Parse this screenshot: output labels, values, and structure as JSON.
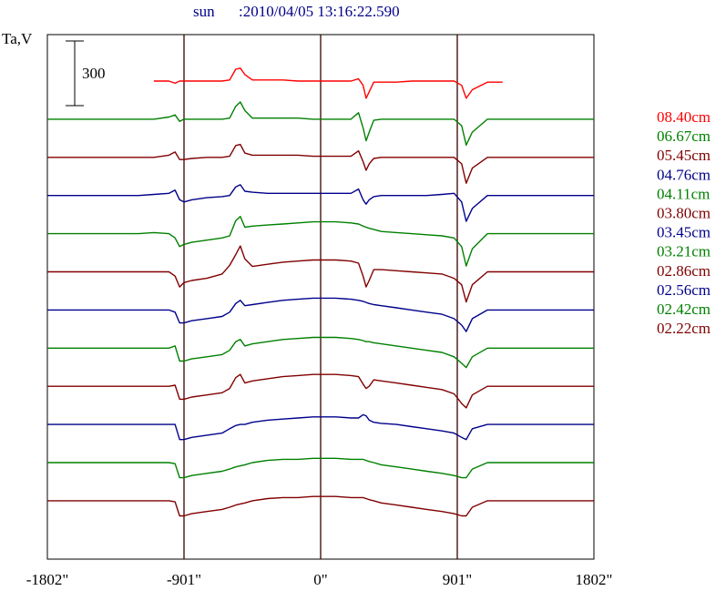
{
  "header": {
    "object_label": "sun",
    "timestamp": ":2010/04/05 13:16:22.590"
  },
  "colors": {
    "red": "#ff0000",
    "green": "#008000",
    "maroon": "#800000",
    "navy": "#00008b",
    "header_text": "#00008b"
  },
  "chart_data": {
    "type": "line",
    "title": "sun    :2010/04/05 13:16:22.590",
    "ylabel": "Ta,V",
    "scale_bar": {
      "label": "300",
      "value": 300
    },
    "x_ticks": [
      {
        "label": "-1802\"",
        "value": -1802
      },
      {
        "label": "-901\"",
        "value": -901
      },
      {
        "label": "0\"",
        "value": 0
      },
      {
        "label": "901\"",
        "value": 901
      },
      {
        "label": "1802\"",
        "value": 1802
      }
    ],
    "xlim": [
      -1802,
      1802
    ],
    "vertical_lines": [
      -901,
      0,
      901
    ],
    "x": [
      -1802,
      -1650,
      -1500,
      -1350,
      -1200,
      -1100,
      -1000,
      -960,
      -930,
      -901,
      -850,
      -750,
      -650,
      -600,
      -560,
      -530,
      -500,
      -450,
      -350,
      -250,
      -150,
      -50,
      0,
      100,
      200,
      250,
      280,
      300,
      320,
      350,
      400,
      500,
      600,
      700,
      800,
      880,
      930,
      960,
      1000,
      1100,
      1200,
      1300,
      1400,
      1500,
      1600,
      1700,
      1802
    ],
    "series": [
      {
        "name": "08.40cm",
        "color": "#ff0000",
        "values": [
          null,
          null,
          null,
          null,
          null,
          0,
          0,
          -10,
          0,
          0,
          0,
          0,
          0,
          5,
          55,
          60,
          30,
          5,
          5,
          5,
          0,
          0,
          0,
          0,
          0,
          10,
          -20,
          -80,
          -50,
          -5,
          -5,
          -5,
          0,
          0,
          0,
          0,
          -20,
          -80,
          -40,
          -5,
          -5,
          null,
          null,
          null,
          null,
          null,
          null
        ]
      },
      {
        "name": "06.67cm",
        "color": "#008000",
        "values": [
          0,
          0,
          0,
          0,
          0,
          0,
          10,
          20,
          -10,
          0,
          0,
          0,
          0,
          5,
          60,
          80,
          40,
          5,
          5,
          5,
          5,
          0,
          0,
          0,
          0,
          30,
          -40,
          -100,
          -60,
          -5,
          0,
          0,
          0,
          0,
          0,
          0,
          -30,
          -120,
          -60,
          0,
          0,
          0,
          0,
          0,
          0,
          0,
          0
        ]
      },
      {
        "name": "05.45cm",
        "color": "#800000",
        "values": [
          0,
          0,
          0,
          0,
          0,
          0,
          10,
          25,
          -10,
          -10,
          -5,
          0,
          0,
          5,
          55,
          60,
          20,
          10,
          10,
          10,
          10,
          5,
          5,
          5,
          5,
          30,
          -20,
          -60,
          -30,
          -5,
          0,
          0,
          0,
          0,
          0,
          0,
          -30,
          -120,
          -50,
          0,
          0,
          0,
          0,
          0,
          0,
          0,
          0
        ]
      },
      {
        "name": "04.76cm",
        "color": "#00008b",
        "values": [
          0,
          0,
          0,
          0,
          0,
          5,
          10,
          25,
          -20,
          -30,
          -20,
          -10,
          -5,
          0,
          40,
          50,
          20,
          15,
          10,
          10,
          10,
          10,
          10,
          10,
          10,
          30,
          -20,
          -40,
          -20,
          -5,
          0,
          0,
          0,
          0,
          5,
          10,
          -30,
          -120,
          -60,
          0,
          0,
          0,
          0,
          0,
          0,
          0,
          0
        ]
      },
      {
        "name": "04.11cm",
        "color": "#008000",
        "values": [
          0,
          0,
          0,
          0,
          0,
          5,
          0,
          -20,
          -60,
          -50,
          -40,
          -30,
          -20,
          -10,
          60,
          80,
          30,
          35,
          40,
          45,
          50,
          55,
          55,
          55,
          50,
          45,
          35,
          30,
          25,
          20,
          10,
          5,
          0,
          -5,
          -10,
          -20,
          -60,
          -150,
          -70,
          0,
          0,
          0,
          0,
          0,
          0,
          0,
          0
        ]
      },
      {
        "name": "03.80cm",
        "color": "#800000",
        "values": [
          0,
          0,
          0,
          0,
          0,
          0,
          0,
          -20,
          -70,
          -50,
          -40,
          -30,
          -10,
          30,
          80,
          120,
          60,
          25,
          35,
          45,
          50,
          55,
          55,
          55,
          50,
          40,
          -20,
          -70,
          -40,
          10,
          10,
          5,
          0,
          -5,
          -10,
          -30,
          -60,
          -140,
          -60,
          0,
          0,
          0,
          0,
          0,
          0,
          0,
          0
        ]
      },
      {
        "name": "03.45cm",
        "color": "#00008b",
        "values": [
          0,
          0,
          0,
          0,
          0,
          0,
          0,
          -10,
          -60,
          -60,
          -50,
          -40,
          -30,
          -10,
          30,
          45,
          20,
          25,
          35,
          45,
          50,
          55,
          55,
          55,
          50,
          45,
          40,
          35,
          30,
          25,
          20,
          10,
          0,
          -10,
          -20,
          -40,
          -70,
          -100,
          -40,
          0,
          0,
          0,
          0,
          0,
          0,
          0,
          0
        ]
      },
      {
        "name": "03.21cm",
        "color": "#008000",
        "values": [
          0,
          0,
          0,
          0,
          0,
          0,
          0,
          10,
          -60,
          -60,
          -50,
          -40,
          -30,
          -10,
          30,
          40,
          10,
          20,
          30,
          40,
          45,
          50,
          50,
          50,
          45,
          40,
          35,
          30,
          30,
          25,
          20,
          10,
          0,
          -10,
          -20,
          -40,
          -70,
          -90,
          -40,
          0,
          0,
          0,
          0,
          0,
          0,
          0,
          0
        ]
      },
      {
        "name": "02.86cm",
        "color": "#800000",
        "values": [
          0,
          0,
          0,
          0,
          0,
          0,
          0,
          5,
          -60,
          -60,
          -50,
          -40,
          -30,
          -10,
          40,
          55,
          15,
          25,
          35,
          45,
          50,
          55,
          55,
          55,
          50,
          45,
          10,
          -10,
          0,
          30,
          25,
          15,
          5,
          -5,
          -15,
          -35,
          -80,
          -100,
          -40,
          0,
          0,
          0,
          0,
          0,
          0,
          0,
          0
        ]
      },
      {
        "name": "02.56cm",
        "color": "#00008b",
        "values": [
          0,
          0,
          0,
          0,
          0,
          0,
          0,
          0,
          -70,
          -70,
          -60,
          -50,
          -40,
          -20,
          -5,
          0,
          0,
          10,
          20,
          25,
          30,
          35,
          35,
          35,
          30,
          30,
          45,
          40,
          20,
          10,
          5,
          0,
          -10,
          -20,
          -30,
          -40,
          -60,
          -70,
          -20,
          0,
          0,
          0,
          0,
          0,
          0,
          0,
          0
        ]
      },
      {
        "name": "02.42cm",
        "color": "#008000",
        "values": [
          0,
          0,
          0,
          0,
          0,
          0,
          0,
          -5,
          -70,
          -70,
          -60,
          -50,
          -40,
          -30,
          -20,
          -15,
          -10,
          0,
          10,
          15,
          15,
          20,
          20,
          20,
          15,
          15,
          15,
          10,
          5,
          0,
          -10,
          -20,
          -30,
          -40,
          -50,
          -60,
          -70,
          -70,
          -30,
          0,
          0,
          0,
          0,
          0,
          0,
          0,
          0
        ]
      },
      {
        "name": "02.22cm",
        "color": "#800000",
        "values": [
          0,
          0,
          0,
          0,
          0,
          0,
          0,
          -5,
          -70,
          -70,
          -60,
          -50,
          -40,
          -30,
          -20,
          -15,
          -10,
          0,
          10,
          15,
          15,
          20,
          20,
          20,
          15,
          15,
          15,
          10,
          5,
          0,
          -10,
          -20,
          -30,
          -40,
          -50,
          -60,
          -70,
          -70,
          -30,
          0,
          0,
          0,
          0,
          0,
          0,
          0,
          0
        ]
      }
    ]
  }
}
